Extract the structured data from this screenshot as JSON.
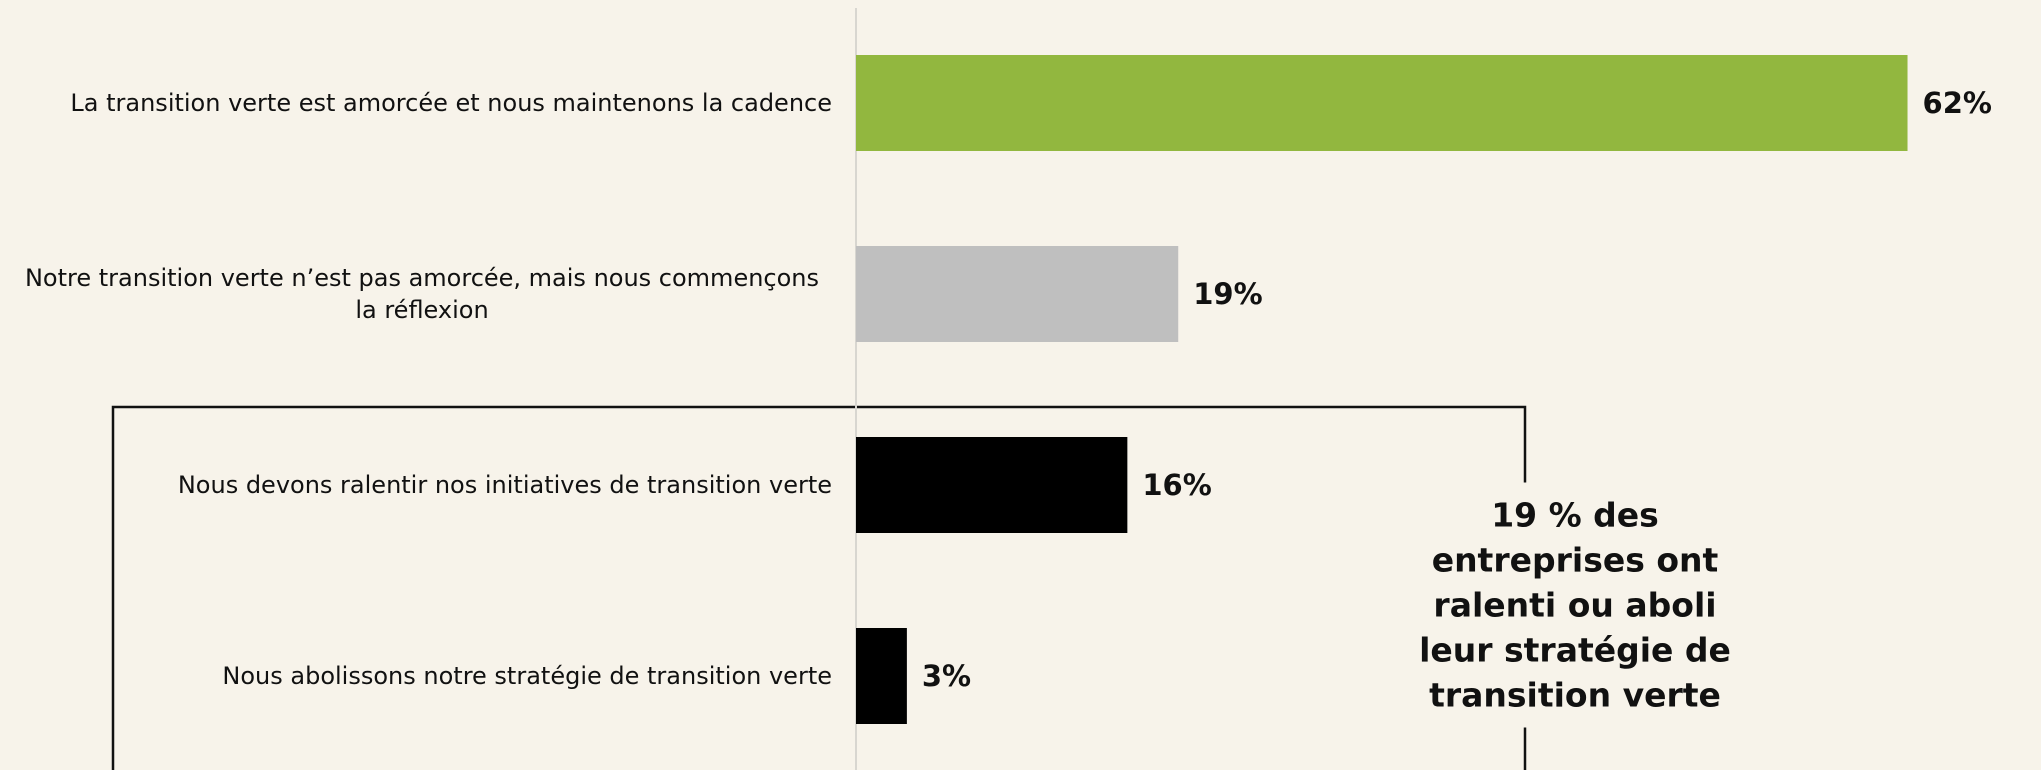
{
  "chart_data": {
    "type": "bar",
    "orientation": "horizontal",
    "categories": [
      "La transition verte est amorcée et nous maintenons la cadence",
      "Notre transition verte n’est pas amorcée, mais nous commençons la réflexion",
      "Nous devons ralentir nos initiatives de transition verte",
      "Nous abolissons notre stratégie de transition verte"
    ],
    "values": [
      62,
      19,
      16,
      3
    ],
    "value_labels": [
      "62%",
      "19%",
      "16%",
      "3%"
    ],
    "colors": [
      "#92b73f",
      "#bfbfbf",
      "#000000",
      "#000000"
    ],
    "annotation": "19 % des entreprises ont ralenti ou aboli leur stratégie de transition verte"
  }
}
